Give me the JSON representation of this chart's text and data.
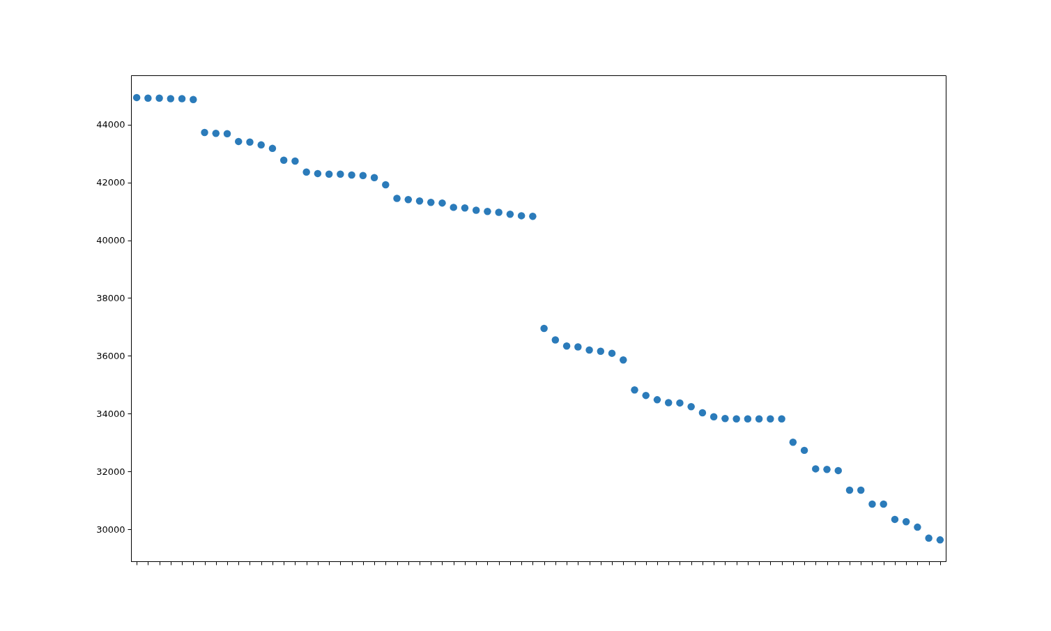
{
  "chart_data": {
    "type": "scatter",
    "categories": [
      null,
      null,
      null,
      null,
      null,
      null,
      null,
      null,
      null,
      null,
      null,
      null,
      null,
      null,
      null,
      null,
      null,
      null,
      null,
      null,
      null,
      null,
      null,
      null,
      null,
      null,
      null,
      null,
      null,
      null,
      null,
      null,
      null,
      null,
      null,
      null,
      null,
      null,
      null,
      null,
      null,
      null,
      null,
      null,
      null,
      null,
      null,
      null,
      null,
      null,
      null,
      null,
      null,
      null,
      null,
      null,
      null,
      null,
      null,
      null,
      null,
      null,
      null,
      null,
      null,
      null,
      null,
      null,
      null,
      null,
      null,
      null
    ],
    "series": [
      {
        "color": "#2b7bba",
        "values": [
          44940,
          44920,
          44920,
          44900,
          44900,
          44870,
          43730,
          43700,
          43690,
          43420,
          43400,
          43300,
          43180,
          42770,
          42740,
          42360,
          42310,
          42290,
          42290,
          42260,
          42240,
          42170,
          41920,
          41450,
          41410,
          41360,
          41310,
          41290,
          41140,
          41120,
          41040,
          41000,
          40970,
          40900,
          40850,
          40830,
          36950,
          36550,
          36340,
          36310,
          36200,
          36160,
          36090,
          35860,
          34820,
          34630,
          34480,
          34380,
          34370,
          34240,
          34030,
          33890,
          33830,
          33820,
          33820,
          33820,
          33820,
          33820,
          33010,
          32730,
          32090,
          32070,
          32030,
          31350,
          31350,
          30870,
          30870,
          30340,
          30260,
          30070,
          29690,
          29630
        ]
      }
    ],
    "ylim": [
      28890,
      45710
    ],
    "yticks": [
      30000,
      32000,
      34000,
      36000,
      38000,
      40000,
      42000,
      44000
    ],
    "marker": "circle",
    "grid": false,
    "tick_labels": "y"
  }
}
